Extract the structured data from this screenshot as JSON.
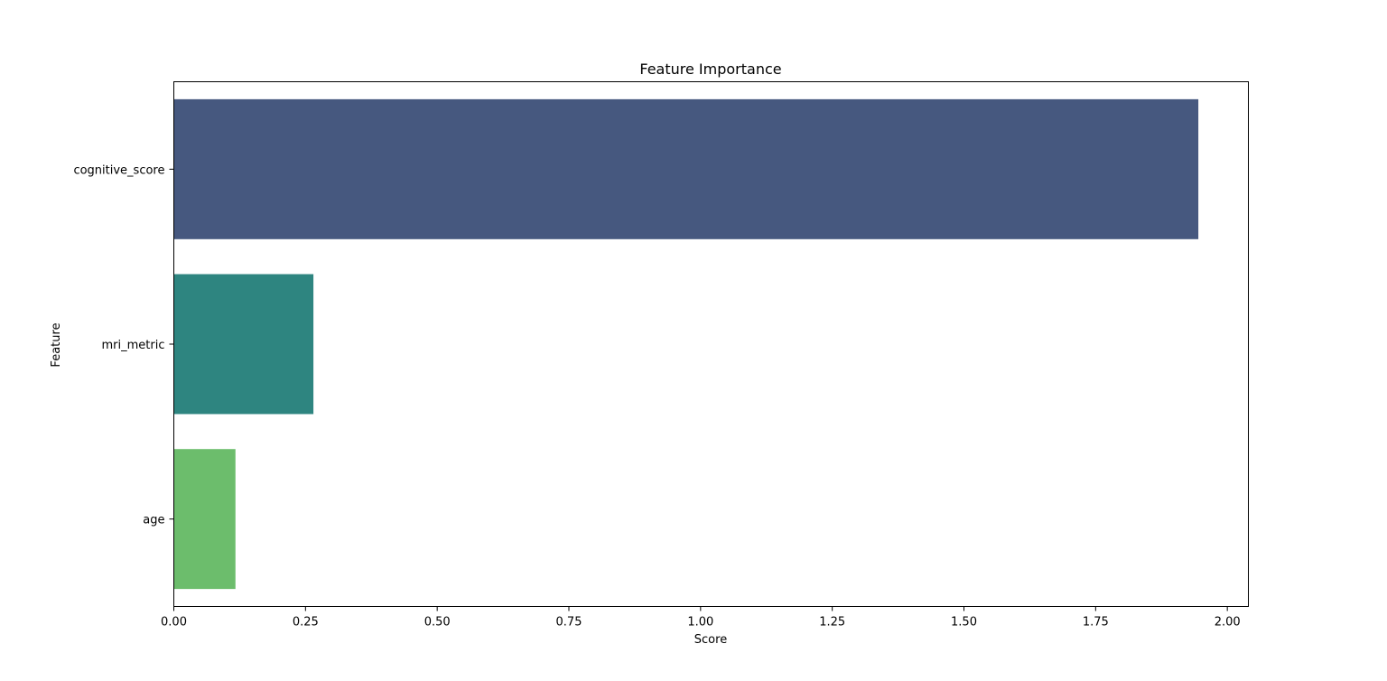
{
  "chart_data": {
    "type": "bar",
    "orientation": "horizontal",
    "title": "Feature Importance",
    "xlabel": "Score",
    "ylabel": "Feature",
    "categories": [
      "cognitive_score",
      "mri_metric",
      "age"
    ],
    "values": [
      1.945,
      0.265,
      0.117
    ],
    "colors": [
      "#46587f",
      "#2e8580",
      "#6cbd6c"
    ],
    "xlim": [
      0,
      2.04
    ],
    "xticks": [
      0,
      0.25,
      0.5,
      0.75,
      1.0,
      1.25,
      1.5,
      1.75,
      2.0
    ],
    "xtick_labels": [
      "0.00",
      "0.25",
      "0.50",
      "0.75",
      "1.00",
      "1.25",
      "1.50",
      "1.75",
      "2.00"
    ],
    "grid": false,
    "legend": "none"
  }
}
